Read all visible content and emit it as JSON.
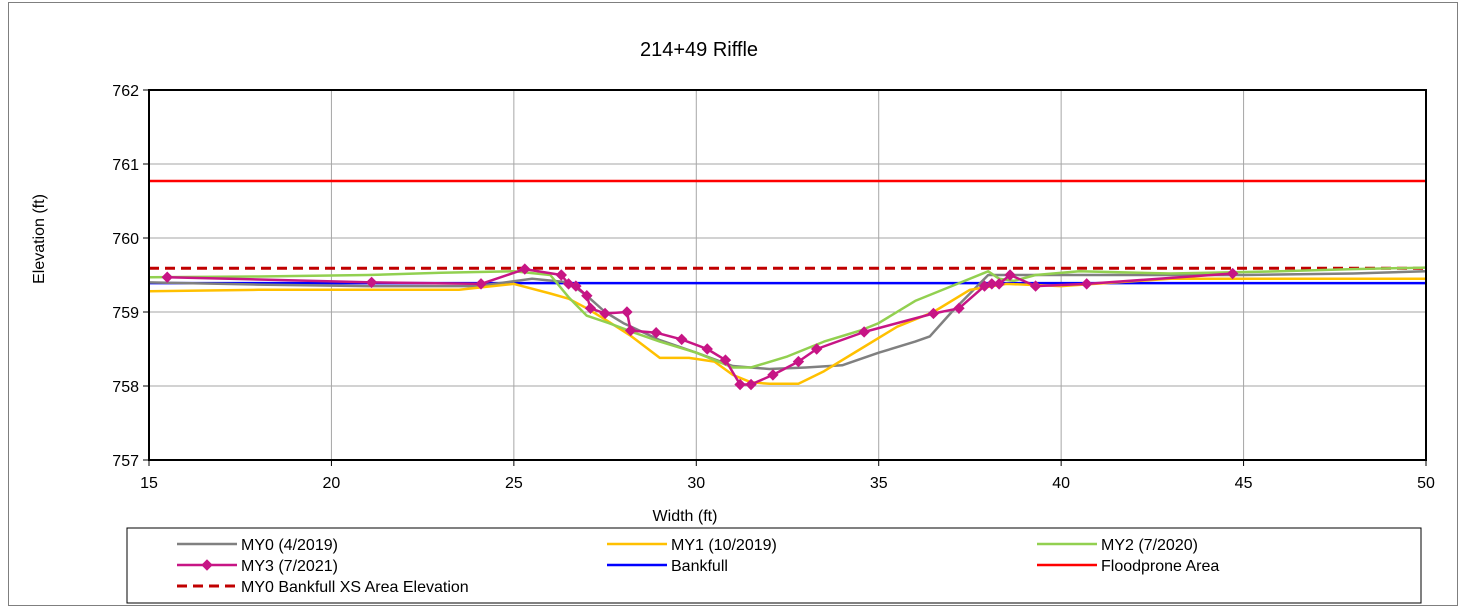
{
  "chart_data": {
    "type": "line",
    "title": "214+49 Riffle",
    "xlabel": "Width (ft)",
    "ylabel": "Elevation (ft)",
    "xlim": [
      15,
      50
    ],
    "ylim": [
      757,
      762
    ],
    "xticks": [
      15,
      20,
      25,
      30,
      35,
      40,
      45,
      50
    ],
    "yticks": [
      757,
      758,
      759,
      760,
      761,
      762
    ],
    "grid": true,
    "legend_position": "bottom",
    "series": [
      {
        "name": "MY0 (4/2019)",
        "color": "#808080",
        "style": "solid",
        "markers": false,
        "x": [
          15.0,
          18.0,
          21.0,
          24.0,
          25.5,
          26.5,
          27.0,
          27.5,
          28.0,
          29.0,
          30.0,
          31.0,
          32.0,
          33.0,
          34.0,
          35.0,
          36.0,
          36.4,
          37.0,
          38.0,
          40.0,
          42.0,
          45.0,
          48.0,
          50.0
        ],
        "y": [
          759.4,
          759.37,
          759.35,
          759.35,
          759.45,
          759.4,
          759.22,
          759.0,
          758.85,
          758.62,
          758.45,
          758.27,
          758.23,
          758.25,
          758.28,
          758.45,
          758.6,
          758.67,
          759.0,
          759.5,
          759.5,
          759.5,
          759.5,
          759.52,
          759.55
        ]
      },
      {
        "name": "MY1 (10/2019)",
        "color": "#ffc000",
        "style": "solid",
        "markers": false,
        "x": [
          15.0,
          18.0,
          21.0,
          23.5,
          25.0,
          26.0,
          26.5,
          27.0,
          27.5,
          28.2,
          29.0,
          29.8,
          30.5,
          31.0,
          31.5,
          32.0,
          32.8,
          33.5,
          34.5,
          35.5,
          36.5,
          37.5,
          38.5,
          40.0,
          43.0,
          47.0,
          50.0
        ],
        "y": [
          759.28,
          759.3,
          759.3,
          759.3,
          759.38,
          759.25,
          759.18,
          759.05,
          758.9,
          758.68,
          758.38,
          758.38,
          758.33,
          758.15,
          758.05,
          758.03,
          758.03,
          758.2,
          758.5,
          758.8,
          759.0,
          759.3,
          759.38,
          759.35,
          759.45,
          759.45,
          759.45
        ]
      },
      {
        "name": "MY2 (7/2020)",
        "color": "#92d050",
        "style": "solid",
        "markers": false,
        "x": [
          15.0,
          18.0,
          21.0,
          23.0,
          25.0,
          26.0,
          26.5,
          27.0,
          27.6,
          28.3,
          29.0,
          30.0,
          31.0,
          31.5,
          32.5,
          33.5,
          34.5,
          35.0,
          36.0,
          37.0,
          38.0,
          38.3,
          38.7,
          39.3,
          40.5,
          43.0,
          46.0,
          48.0,
          50.0
        ],
        "y": [
          759.47,
          759.48,
          759.5,
          759.53,
          759.55,
          759.5,
          759.2,
          758.95,
          758.85,
          758.72,
          758.6,
          758.45,
          758.25,
          758.25,
          758.4,
          758.6,
          758.75,
          758.85,
          759.15,
          759.35,
          759.55,
          759.45,
          759.42,
          759.5,
          759.55,
          759.52,
          759.55,
          759.58,
          759.6
        ]
      },
      {
        "name": "MY3 (7/2021)",
        "color": "#c71585",
        "style": "solid",
        "markers": true,
        "x": [
          15.5,
          21.1,
          24.1,
          25.3,
          26.3,
          26.5,
          26.7,
          27.0,
          27.1,
          27.5,
          28.1,
          28.2,
          28.9,
          29.6,
          30.3,
          30.8,
          31.2,
          31.5,
          32.1,
          32.8,
          33.3,
          34.6,
          36.5,
          37.2,
          37.9,
          38.1,
          38.3,
          38.6,
          39.3,
          40.7,
          44.7
        ],
        "y": [
          759.47,
          759.4,
          759.38,
          759.58,
          759.5,
          759.38,
          759.35,
          759.22,
          759.05,
          758.98,
          759.0,
          758.75,
          758.72,
          758.63,
          758.5,
          758.35,
          758.02,
          758.02,
          758.15,
          758.33,
          758.5,
          758.73,
          758.98,
          759.05,
          759.35,
          759.38,
          759.38,
          759.5,
          759.35,
          759.38,
          759.52
        ]
      },
      {
        "name": "Bankfull",
        "color": "#0000ff",
        "style": "solid",
        "markers": false,
        "x": [
          15,
          50
        ],
        "y": [
          759.39,
          759.39
        ]
      },
      {
        "name": "Floodprone Area",
        "color": "#ff0000",
        "style": "solid",
        "markers": false,
        "x": [
          15,
          50
        ],
        "y": [
          760.77,
          760.77
        ]
      },
      {
        "name": "MY0 Bankfull XS Area Elevation",
        "color": "#c00000",
        "style": "dashed",
        "markers": false,
        "x": [
          15,
          50
        ],
        "y": [
          759.59,
          759.59
        ]
      }
    ]
  }
}
